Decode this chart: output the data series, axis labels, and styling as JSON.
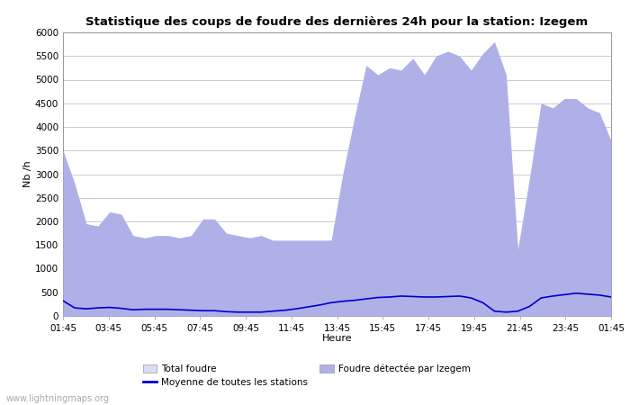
{
  "title": "Statistique des coups de foudre des dernières 24h pour la station: Izegem",
  "xlabel": "Heure",
  "ylabel": "Nb /h",
  "ylim": [
    0,
    6000
  ],
  "yticks": [
    0,
    500,
    1000,
    1500,
    2000,
    2500,
    3000,
    3500,
    4000,
    4500,
    5000,
    5500,
    6000
  ],
  "xtick_labels": [
    "01:45",
    "03:45",
    "05:45",
    "07:45",
    "09:45",
    "11:45",
    "13:45",
    "15:45",
    "17:45",
    "19:45",
    "21:45",
    "23:45",
    "01:45"
  ],
  "bg_color": "#ffffff",
  "plot_bg_color": "#ffffff",
  "grid_color": "#cccccc",
  "total_foudre_color": "#dcdcf5",
  "izegem_color": "#b0b0e8",
  "moyenne_color": "#0000cc",
  "watermark": "www.lightningmaps.org",
  "legend_items": [
    {
      "label": "Total foudre",
      "color": "#dcdcf5",
      "type": "patch"
    },
    {
      "label": "Moyenne de toutes les stations",
      "color": "#0000cc",
      "type": "line"
    },
    {
      "label": "Foudre détectée par Izegem",
      "color": "#b0b0e8",
      "type": "patch"
    }
  ],
  "total_foudre": [
    3500,
    2800,
    1950,
    1900,
    2200,
    2150,
    1700,
    1650,
    1700,
    1700,
    1650,
    1700,
    2050,
    2050,
    1750,
    1700,
    1650,
    1700,
    1600,
    1600,
    1600,
    1600,
    1600,
    1600,
    3000,
    4200,
    5300,
    5100,
    5250,
    5200,
    5450,
    5100,
    5500,
    5600,
    5500,
    5200,
    5550,
    5800,
    5100,
    1400,
    2900,
    4500,
    4400,
    4600,
    4600,
    4400,
    4300,
    3700
  ],
  "izegem": [
    3500,
    2800,
    1950,
    1900,
    2200,
    2150,
    1700,
    1650,
    1700,
    1700,
    1650,
    1700,
    2050,
    2050,
    1750,
    1700,
    1650,
    1700,
    1600,
    1600,
    1600,
    1600,
    1600,
    1600,
    3000,
    4200,
    5300,
    5100,
    5250,
    5200,
    5450,
    5100,
    5500,
    5600,
    5500,
    5200,
    5550,
    5800,
    5100,
    1400,
    2900,
    4500,
    4400,
    4600,
    4600,
    4400,
    4300,
    3700
  ],
  "moyenne": [
    320,
    170,
    150,
    170,
    180,
    160,
    130,
    140,
    140,
    140,
    130,
    120,
    110,
    110,
    90,
    80,
    80,
    80,
    100,
    120,
    150,
    190,
    230,
    280,
    310,
    330,
    360,
    390,
    400,
    420,
    410,
    400,
    400,
    410,
    420,
    380,
    280,
    100,
    80,
    100,
    200,
    380,
    420,
    450,
    480,
    460,
    440,
    400
  ]
}
